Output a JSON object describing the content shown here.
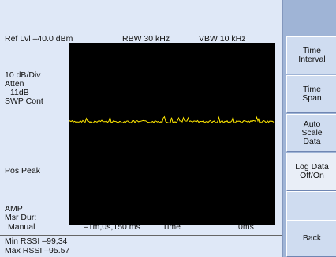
{
  "header": {
    "ref_level": "Ref Lvl –40.0 dBm",
    "rbw": "RBW 30 kHz",
    "vbw": "VBW 10 kHz"
  },
  "left_params": {
    "scale": "10 dB/Div",
    "atten_label": "Atten",
    "atten_value": "11dB",
    "sweep": "SWP Cont",
    "detector": "Pos Peak",
    "amp": "AMP",
    "msr_dur_label": "Msr Dur:",
    "msr_dur_value": "Manual"
  },
  "time_axis": {
    "start": "–1m,0s,150 ms",
    "label": "Time",
    "end": "0ms"
  },
  "readouts": {
    "min_rssi": "Min RSSI –99,34",
    "max_rssi": "Max RSSI –95.57"
  },
  "softkeys": [
    {
      "label": "Time\nInterval"
    },
    {
      "label": "Time\nSpan"
    },
    {
      "label": "Auto\nScale\nData"
    },
    {
      "label": "Log Data\nOff/On"
    },
    {
      "label": ""
    },
    {
      "label": "Back"
    }
  ],
  "trace": {
    "color": "#ffe600",
    "level_fraction": 0.43
  },
  "colors": {
    "panel_bg": "#dfe8f7",
    "sidebar_bg": "#9fb4d6",
    "screen_bg": "#000000"
  }
}
